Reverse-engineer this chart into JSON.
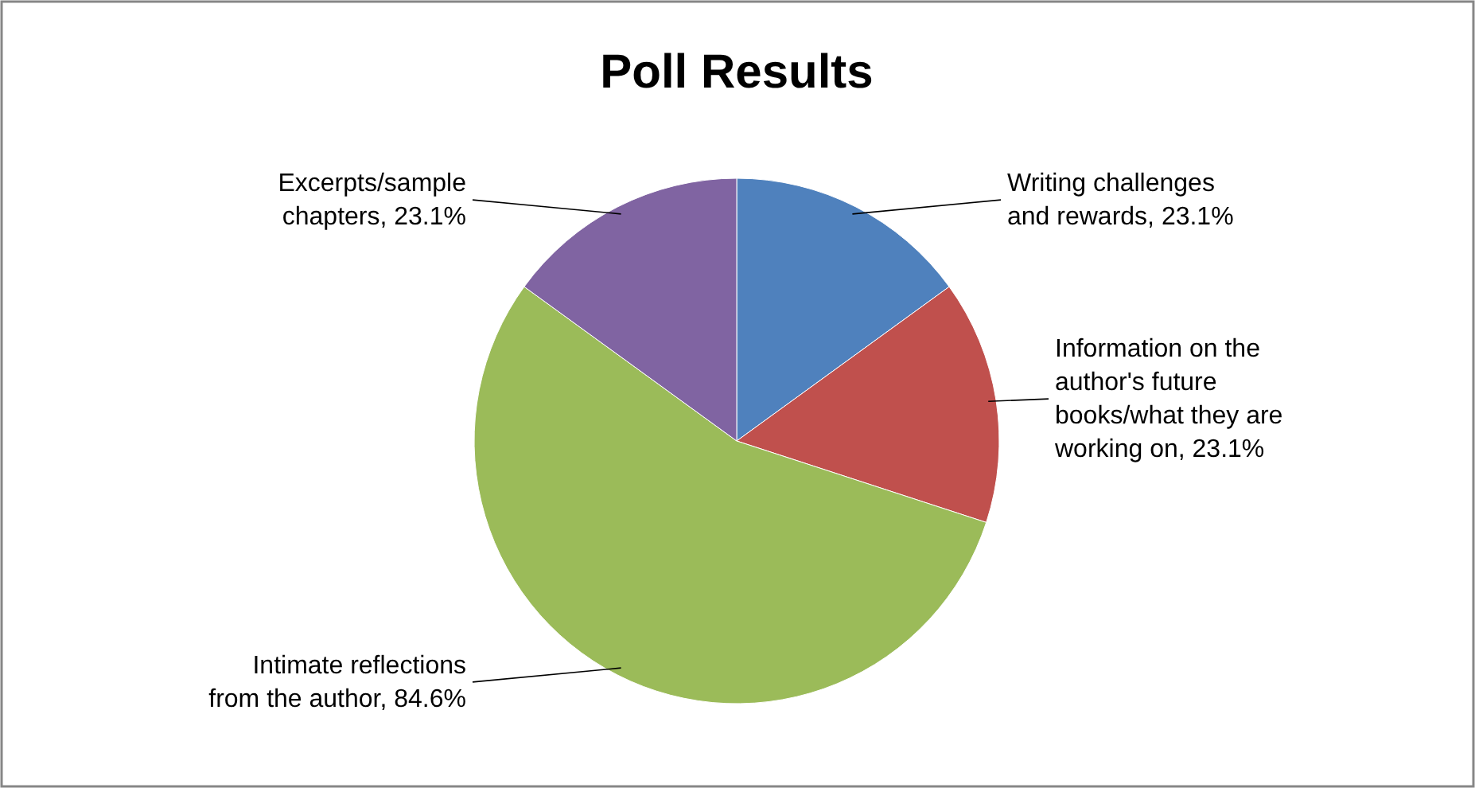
{
  "chart_data": {
    "type": "pie",
    "title": "Poll Results",
    "categories": [
      "Writing challenges and rewards",
      "Information on the author's future books/what they are working on",
      "Intimate reflections from the author",
      "Excerpts/sample chapters"
    ],
    "values": [
      23.1,
      23.1,
      84.6,
      23.1
    ],
    "colors": [
      "#4f81bd",
      "#c0504d",
      "#9bbb59",
      "#8064a2"
    ],
    "value_labels": [
      "23.1%",
      "23.1%",
      "84.6%",
      "23.1%"
    ]
  }
}
